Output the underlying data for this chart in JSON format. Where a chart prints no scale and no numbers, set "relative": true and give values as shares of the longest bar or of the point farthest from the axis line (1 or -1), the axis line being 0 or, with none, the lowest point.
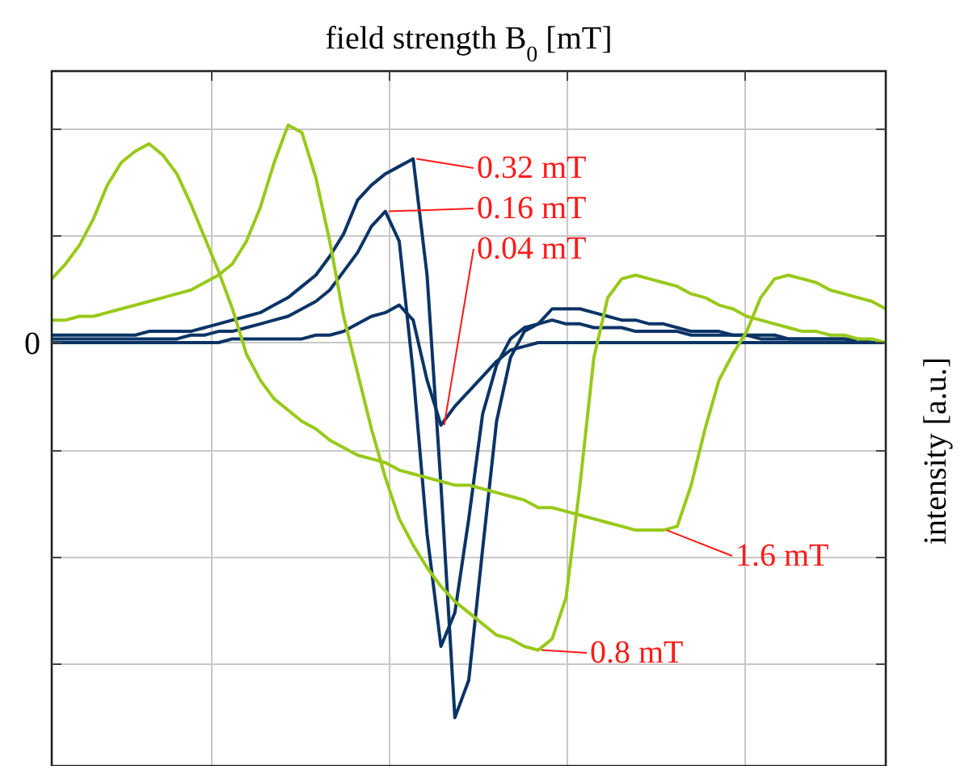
{
  "chart_data": {
    "type": "line",
    "title": "field strength B$_{0}$ [mT]",
    "ylabel": "intensity [a.u.]",
    "relative": true,
    "grid": true,
    "legend": false,
    "marker": "none",
    "line_style": "solid",
    "annotations": [
      "0"
    ],
    "categories": [
      null,
      null,
      null,
      null,
      null,
      null,
      null,
      null,
      null,
      null,
      null,
      null,
      null,
      null,
      null,
      null,
      null,
      null,
      null,
      null,
      null,
      null,
      null,
      null,
      null,
      null,
      null,
      null,
      null,
      null,
      null,
      null,
      null,
      null,
      null,
      null,
      null,
      null,
      null,
      null,
      null,
      null,
      null,
      null,
      null,
      null,
      null,
      null,
      null,
      null,
      null,
      null,
      null,
      null,
      null,
      null,
      null,
      null,
      null,
      null,
      null
    ],
    "series": [
      {
        "name": "0.32 mT",
        "color": "#0b3466",
        "values": [
          0.02,
          0.02,
          0.02,
          0.02,
          0.02,
          0.02,
          0.02,
          0.03,
          0.03,
          0.03,
          0.03,
          0.04,
          0.05,
          0.06,
          0.07,
          0.08,
          0.1,
          0.12,
          0.15,
          0.18,
          0.23,
          0.29,
          0.38,
          0.42,
          0.45,
          0.47,
          0.49,
          0.18,
          -0.38,
          -1,
          -0.9,
          -0.55,
          -0.21,
          -0.04,
          0.03,
          0.05,
          0.09,
          0.09,
          0.09,
          0.08,
          0.07,
          0.06,
          0.06,
          0.05,
          0.05,
          0.04,
          0.03,
          0.03,
          0.03,
          0.02,
          0.02,
          0.02,
          0.02,
          0.01,
          0.01,
          0.01,
          0.01,
          0.01,
          0.01,
          0.0,
          0.0
        ]
      },
      {
        "name": "0.16 mT",
        "color": "#0b3466",
        "values": [
          0.01,
          0.01,
          0.01,
          0.01,
          0.01,
          0.01,
          0.01,
          0.01,
          0.01,
          0.01,
          0.02,
          0.02,
          0.03,
          0.03,
          0.04,
          0.05,
          0.06,
          0.07,
          0.09,
          0.11,
          0.14,
          0.19,
          0.24,
          0.31,
          0.35,
          0.27,
          -0.08,
          -0.51,
          -0.81,
          -0.72,
          -0.47,
          -0.19,
          -0.06,
          0.01,
          0.04,
          0.05,
          0.06,
          0.05,
          0.05,
          0.04,
          0.04,
          0.04,
          0.03,
          0.03,
          0.03,
          0.03,
          0.02,
          0.02,
          0.02,
          0.02,
          0.02,
          0.01,
          0.01,
          0.01,
          0.01,
          0.01,
          0.01,
          0.01,
          0.0,
          0.0,
          0.0
        ]
      },
      {
        "name": "0.04 mT",
        "color": "#0b3466",
        "values": [
          0.0,
          0.0,
          0.0,
          0.0,
          0.0,
          0.0,
          0.0,
          0.0,
          0.0,
          0.0,
          0.0,
          0.0,
          0.0,
          0.01,
          0.01,
          0.01,
          0.01,
          0.01,
          0.01,
          0.02,
          0.02,
          0.03,
          0.05,
          0.07,
          0.08,
          0.1,
          0.06,
          -0.1,
          -0.22,
          -0.17,
          -0.13,
          -0.09,
          -0.05,
          -0.02,
          -0.01,
          0.0,
          0.0,
          0.0,
          0.0,
          0.0,
          0.0,
          0.0,
          0.0,
          0.0,
          0.0,
          0.0,
          0.0,
          0.0,
          0.0,
          0.0,
          0.0,
          0.0,
          0.0,
          0.0,
          0.0,
          0.0,
          0.0,
          0.0,
          0.0,
          0.0,
          0.0
        ]
      },
      {
        "name": "0.8 mT",
        "color": "#99c91a",
        "values": [
          0.06,
          0.06,
          0.07,
          0.07,
          0.08,
          0.09,
          0.1,
          0.11,
          0.12,
          0.13,
          0.14,
          0.16,
          0.18,
          0.21,
          0.27,
          0.36,
          0.48,
          0.58,
          0.56,
          0.44,
          0.27,
          0.07,
          -0.08,
          -0.23,
          -0.36,
          -0.47,
          -0.54,
          -0.6,
          -0.65,
          -0.69,
          -0.72,
          -0.75,
          -0.78,
          -0.79,
          -0.81,
          -0.82,
          -0.79,
          -0.68,
          -0.38,
          -0.04,
          0.12,
          0.17,
          0.18,
          0.17,
          0.16,
          0.15,
          0.13,
          0.12,
          0.1,
          0.09,
          0.07,
          0.06,
          0.05,
          0.04,
          0.03,
          0.03,
          0.02,
          0.02,
          0.01,
          0.01,
          0.0
        ]
      },
      {
        "name": "1.6 mT",
        "color": "#99c91a",
        "values": [
          0.17,
          0.21,
          0.26,
          0.33,
          0.42,
          0.48,
          0.51,
          0.53,
          0.5,
          0.45,
          0.37,
          0.28,
          0.19,
          0.09,
          -0.03,
          -0.1,
          -0.15,
          -0.18,
          -0.21,
          -0.23,
          -0.26,
          -0.28,
          -0.3,
          -0.31,
          -0.32,
          -0.34,
          -0.35,
          -0.36,
          -0.37,
          -0.38,
          -0.38,
          -0.39,
          -0.4,
          -0.41,
          -0.42,
          -0.44,
          -0.44,
          -0.45,
          -0.46,
          -0.47,
          -0.48,
          -0.49,
          -0.5,
          -0.5,
          -0.5,
          -0.49,
          -0.38,
          -0.23,
          -0.1,
          -0.03,
          0.03,
          0.12,
          0.17,
          0.18,
          0.17,
          0.16,
          0.14,
          0.13,
          0.12,
          0.11,
          0.09
        ]
      }
    ]
  }
}
